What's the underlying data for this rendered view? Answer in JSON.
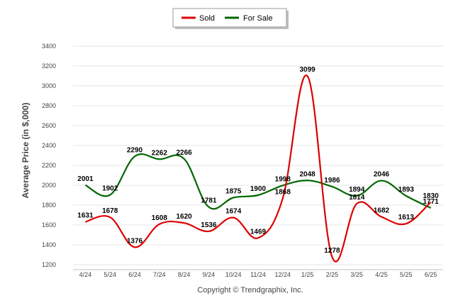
{
  "colors": {
    "sold": "#dd0000",
    "for_sale": "#006600",
    "grid": "#e6e6e6",
    "axis": "#c0c0c0"
  },
  "credit": "Copyright © Trendgraphix, Inc.",
  "chart_data": {
    "type": "line",
    "ylabel": "Average Price (in $,000)",
    "xlabel": "",
    "ylim": [
      1200,
      3400
    ],
    "ytick_step": 200,
    "grid": true,
    "legend_position": "top-center",
    "categories": [
      "4/24",
      "5/24",
      "6/24",
      "7/24",
      "8/24",
      "9/24",
      "10/24",
      "11/24",
      "12/24",
      "1/25",
      "2/25",
      "3/25",
      "4/25",
      "5/25",
      "6/25"
    ],
    "series": [
      {
        "name": "Sold",
        "color": "#dd0000",
        "values": [
          1631,
          1678,
          1376,
          1608,
          1620,
          1536,
          1674,
          1469,
          1868,
          3099,
          1278,
          1814,
          1682,
          1613,
          1830
        ]
      },
      {
        "name": "For Sale",
        "color": "#006600",
        "values": [
          2001,
          1902,
          2290,
          2262,
          2266,
          1781,
          1875,
          1900,
          1998,
          2048,
          1986,
          1894,
          2046,
          1893,
          1771
        ]
      }
    ]
  }
}
